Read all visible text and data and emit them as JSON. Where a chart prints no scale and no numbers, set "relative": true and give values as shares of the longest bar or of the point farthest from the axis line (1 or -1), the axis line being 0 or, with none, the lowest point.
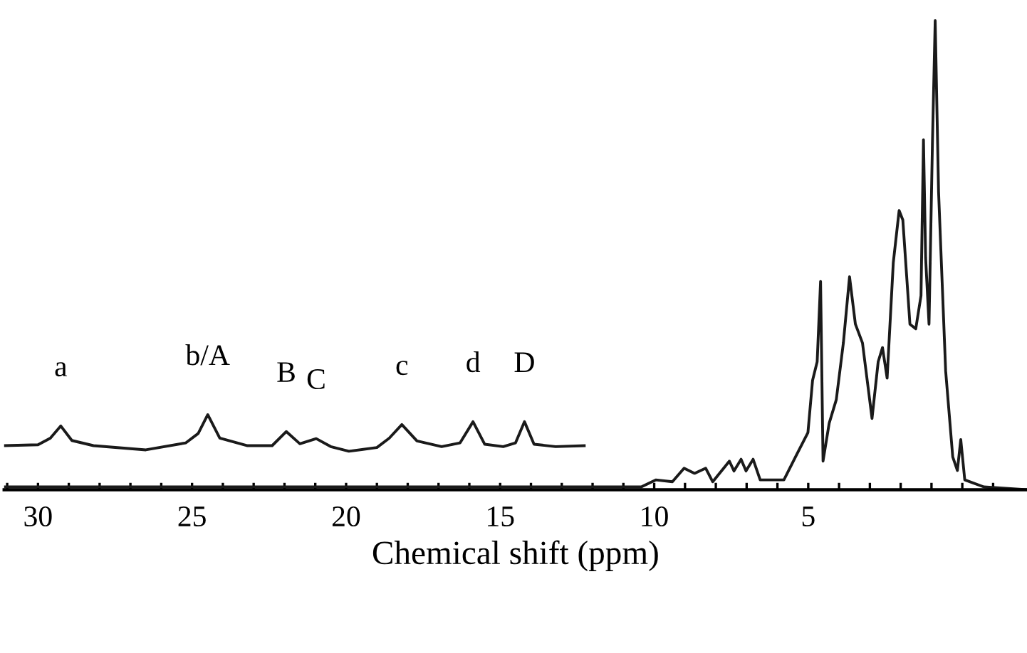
{
  "chart_data": {
    "type": "line",
    "relative": true,
    "xlabel": "Chemical shift (ppm)",
    "tick_labels": "x",
    "grid": false,
    "legend": false,
    "marker": "none",
    "line_style": "solid",
    "xlim": [
      31.1,
      -2.1
    ],
    "xticks": [
      {
        "value": 31,
        "label": null
      },
      30,
      {
        "value": 29,
        "label": null
      },
      {
        "value": 28,
        "label": null
      },
      {
        "value": 27,
        "label": null
      },
      {
        "value": 26,
        "label": null
      },
      25,
      {
        "value": 24,
        "label": null
      },
      {
        "value": 23,
        "label": null
      },
      {
        "value": 22,
        "label": null
      },
      {
        "value": 21,
        "label": null
      },
      20,
      {
        "value": 19,
        "label": null
      },
      {
        "value": 18,
        "label": null
      },
      {
        "value": 17,
        "label": null
      },
      {
        "value": 16,
        "label": null
      },
      15,
      {
        "value": 14,
        "label": null
      },
      {
        "value": 13,
        "label": null
      },
      {
        "value": 12,
        "label": null
      },
      {
        "value": 11,
        "label": null
      },
      10,
      {
        "value": 9,
        "label": null
      },
      {
        "value": 8,
        "label": null
      },
      {
        "value": 7,
        "label": null
      },
      {
        "value": 6,
        "label": null
      },
      5,
      {
        "value": 4,
        "label": null
      },
      {
        "value": 3,
        "label": null
      },
      {
        "value": 2,
        "label": null
      },
      {
        "value": 1,
        "label": null
      },
      {
        "value": 0,
        "label": null
      },
      {
        "value": -1,
        "label": null
      }
    ],
    "series": [
      {
        "color": "#1a1a1a",
        "x": [
          31.1,
          10.42,
          9.95,
          9.41,
          9.03,
          8.69,
          8.33,
          8.1,
          7.56,
          7.41,
          7.18,
          7.02,
          6.79,
          6.56,
          5.79,
          5.4,
          5.01,
          4.86,
          4.71,
          4.6,
          4.52,
          4.32,
          4.09,
          3.86,
          3.66,
          3.47,
          3.24,
          2.93,
          2.73,
          2.59,
          2.44,
          2.24,
          2.05,
          1.93,
          1.7,
          1.51,
          1.34,
          1.26,
          1.19,
          1.08,
          0.97,
          0.88,
          0.77,
          0.54,
          0.31,
          0.16,
          0.05,
          -0.08,
          -0.7,
          -2.08
        ],
        "values": [
          0.006,
          0.006,
          0.021,
          0.017,
          0.046,
          0.035,
          0.046,
          0.017,
          0.061,
          0.04,
          0.065,
          0.04,
          0.065,
          0.021,
          0.021,
          0.072,
          0.122,
          0.233,
          0.273,
          0.444,
          0.061,
          0.142,
          0.192,
          0.313,
          0.454,
          0.353,
          0.313,
          0.152,
          0.273,
          0.303,
          0.238,
          0.484,
          0.595,
          0.575,
          0.353,
          0.343,
          0.414,
          0.746,
          0.494,
          0.353,
          0.736,
          1.0,
          0.635,
          0.253,
          0.07,
          0.041,
          0.107,
          0.021,
          0.006,
          0
        ]
      },
      {
        "color": "#1a1a1a",
        "x": [
          31.1,
          30.0,
          29.6,
          29.26,
          28.9,
          28.2,
          26.5,
          25.2,
          24.8,
          24.49,
          24.1,
          23.2,
          22.4,
          21.94,
          21.5,
          20.97,
          20.5,
          19.91,
          19.0,
          18.6,
          18.19,
          17.7,
          16.9,
          16.3,
          15.88,
          15.5,
          14.9,
          14.5,
          14.21,
          13.9,
          13.2,
          12.27
        ],
        "values": [
          0.094,
          0.096,
          0.11,
          0.136,
          0.105,
          0.094,
          0.085,
          0.1,
          0.12,
          0.16,
          0.11,
          0.094,
          0.094,
          0.124,
          0.098,
          0.109,
          0.092,
          0.082,
          0.09,
          0.11,
          0.139,
          0.104,
          0.092,
          0.1,
          0.145,
          0.097,
          0.092,
          0.1,
          0.145,
          0.097,
          0.092,
          0.094
        ]
      }
    ],
    "annotations": [
      {
        "text": "a",
        "x": 29.26,
        "y": 0.136
      },
      {
        "text": "b/A",
        "x": 24.49,
        "y": 0.16
      },
      {
        "text": "B",
        "x": 21.94,
        "y": 0.124
      },
      {
        "text": "C",
        "x": 20.97,
        "y": 0.109
      },
      {
        "text": "c",
        "x": 18.19,
        "y": 0.139
      },
      {
        "text": "d",
        "x": 15.88,
        "y": 0.145
      },
      {
        "text": "D",
        "x": 14.21,
        "y": 0.145
      }
    ]
  }
}
